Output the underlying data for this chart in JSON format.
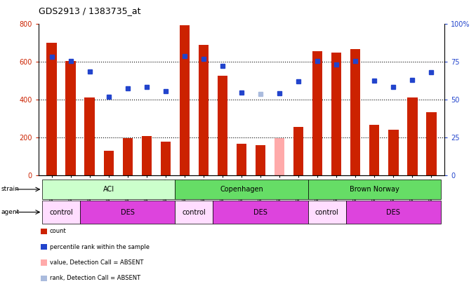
{
  "title": "GDS2913 / 1383735_at",
  "samples": [
    "GSM92200",
    "GSM92201",
    "GSM92202",
    "GSM92203",
    "GSM92204",
    "GSM92205",
    "GSM92206",
    "GSM92207",
    "GSM92208",
    "GSM92209",
    "GSM92210",
    "GSM92211",
    "GSM92212",
    "GSM92213",
    "GSM92214",
    "GSM92215",
    "GSM92216",
    "GSM92217",
    "GSM92218",
    "GSM92219",
    "GSM92220"
  ],
  "bar_values": [
    700,
    605,
    410,
    130,
    198,
    208,
    178,
    793,
    690,
    525,
    168,
    160,
    195,
    255,
    655,
    650,
    665,
    265,
    240,
    410,
    335
  ],
  "bar_absent": [
    false,
    false,
    false,
    false,
    false,
    false,
    false,
    false,
    false,
    false,
    false,
    false,
    true,
    false,
    false,
    false,
    false,
    false,
    false,
    false,
    false
  ],
  "dot_values": [
    625,
    605,
    548,
    415,
    458,
    468,
    445,
    630,
    615,
    578,
    438,
    428,
    435,
    498,
    605,
    585,
    605,
    500,
    468,
    505,
    545
  ],
  "dot_absent": [
    false,
    false,
    false,
    false,
    false,
    false,
    false,
    false,
    false,
    false,
    false,
    true,
    false,
    false,
    false,
    false,
    false,
    false,
    false,
    false,
    false
  ],
  "ylim_left": [
    0,
    800
  ],
  "yticks_left": [
    0,
    200,
    400,
    600,
    800
  ],
  "yticks_right_labels": [
    "0",
    "25",
    "50",
    "75",
    "100%"
  ],
  "grid_lines": [
    200,
    400,
    600
  ],
  "bar_color": "#cc2200",
  "bar_absent_color": "#ffaaaa",
  "dot_color": "#2244cc",
  "dot_absent_color": "#aabbdd",
  "strain_groups": [
    {
      "label": "ACI",
      "start": 0,
      "end": 7,
      "color": "#ccffcc"
    },
    {
      "label": "Copenhagen",
      "start": 7,
      "end": 14,
      "color": "#66dd66"
    },
    {
      "label": "Brown Norway",
      "start": 14,
      "end": 21,
      "color": "#66dd66"
    }
  ],
  "agent_groups": [
    {
      "label": "control",
      "start": 0,
      "end": 2,
      "color": "#ffddff"
    },
    {
      "label": "DES",
      "start": 2,
      "end": 7,
      "color": "#dd44dd"
    },
    {
      "label": "control",
      "start": 7,
      "end": 9,
      "color": "#ffddff"
    },
    {
      "label": "DES",
      "start": 9,
      "end": 14,
      "color": "#dd44dd"
    },
    {
      "label": "control",
      "start": 14,
      "end": 16,
      "color": "#ffddff"
    },
    {
      "label": "DES",
      "start": 16,
      "end": 21,
      "color": "#dd44dd"
    }
  ],
  "legend_labels": [
    "count",
    "percentile rank within the sample",
    "value, Detection Call = ABSENT",
    "rank, Detection Call = ABSENT"
  ],
  "legend_colors": [
    "#cc2200",
    "#2244cc",
    "#ffaaaa",
    "#aabbdd"
  ],
  "strain_label": "strain",
  "agent_label": "agent"
}
